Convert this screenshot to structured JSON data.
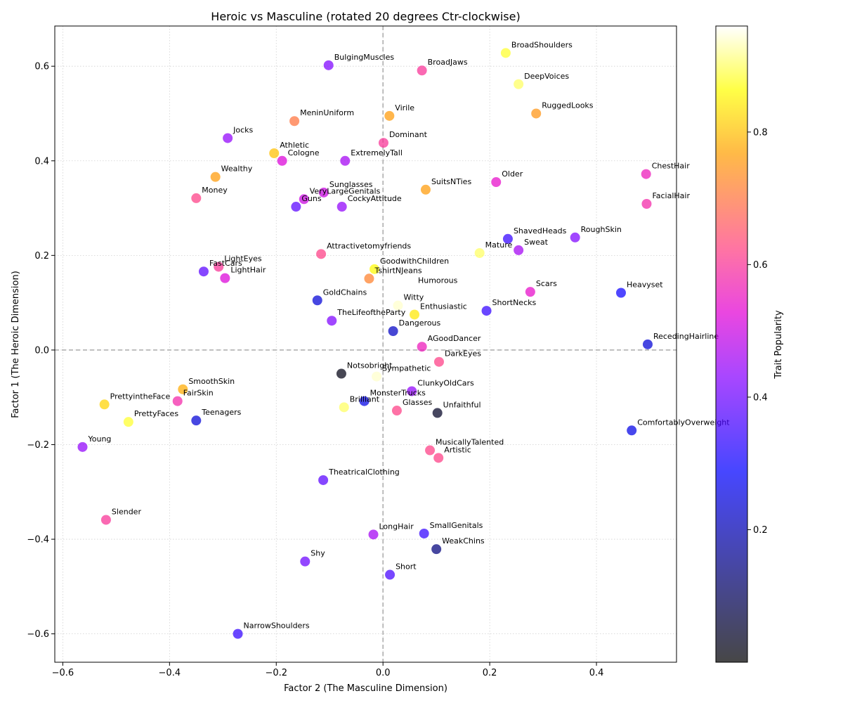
{
  "chart_data": {
    "type": "scatter",
    "title": "Heroic vs Masculine (rotated 20 degrees Ctr-clockwise)",
    "xlabel": "Factor 2 (The Masculine Dimension)",
    "ylabel": "Factor 1 (The Heroic Dimension)",
    "xlim": [
      -0.615,
      0.55
    ],
    "ylim": [
      -0.66,
      0.685
    ],
    "xticks": [
      -0.6,
      -0.4,
      -0.2,
      0.0,
      0.2,
      0.4
    ],
    "xtick_labels": [
      "−0.6",
      "−0.4",
      "−0.2",
      "0.0",
      "0.2",
      "0.4"
    ],
    "yticks": [
      -0.6,
      -0.4,
      -0.2,
      0.0,
      0.2,
      0.4,
      0.6
    ],
    "ytick_labels": [
      "−0.6",
      "−0.4",
      "−0.2",
      "0.0",
      "0.2",
      "0.4",
      "0.6"
    ],
    "grid": true,
    "reference_lines": {
      "x": 0,
      "y": 0,
      "style": "dashed"
    },
    "colorbar": {
      "label": "Trait Popularity",
      "range": [
        0.0,
        0.96
      ],
      "ticks": [
        0.2,
        0.4,
        0.6,
        0.8
      ],
      "tick_labels": [
        "0.2",
        "0.4",
        "0.6",
        "0.8"
      ]
    },
    "points": [
      {
        "label": "BroadShoulders",
        "x": 0.23,
        "y": 0.628,
        "c": 0.88
      },
      {
        "label": "BulgingMuscles",
        "x": -0.102,
        "y": 0.602,
        "c": 0.42
      },
      {
        "label": "BroadJaws",
        "x": 0.073,
        "y": 0.591,
        "c": 0.6
      },
      {
        "label": "DeepVoices",
        "x": 0.254,
        "y": 0.562,
        "c": 0.9
      },
      {
        "label": "RuggedLooks",
        "x": 0.287,
        "y": 0.5,
        "c": 0.75
      },
      {
        "label": "Virile",
        "x": 0.012,
        "y": 0.495,
        "c": 0.76
      },
      {
        "label": "MeninUniform",
        "x": -0.166,
        "y": 0.484,
        "c": 0.7
      },
      {
        "label": "Jocks",
        "x": -0.291,
        "y": 0.448,
        "c": 0.44
      },
      {
        "label": "Dominant",
        "x": 0.001,
        "y": 0.438,
        "c": 0.6
      },
      {
        "label": "Athletic",
        "x": -0.204,
        "y": 0.416,
        "c": 0.8
      },
      {
        "label": "Cologne",
        "x": -0.189,
        "y": 0.4,
        "c": 0.52
      },
      {
        "label": "ExtremelyTall",
        "x": -0.071,
        "y": 0.4,
        "c": 0.46
      },
      {
        "label": "ChestHair",
        "x": 0.493,
        "y": 0.372,
        "c": 0.56
      },
      {
        "label": "Wealthy",
        "x": -0.314,
        "y": 0.366,
        "c": 0.76
      },
      {
        "label": "Older",
        "x": 0.212,
        "y": 0.355,
        "c": 0.54
      },
      {
        "label": "SuitsNTies",
        "x": 0.08,
        "y": 0.339,
        "c": 0.76
      },
      {
        "label": "Sunglasses",
        "x": -0.111,
        "y": 0.333,
        "c": 0.5
      },
      {
        "label": "VeryLargeGenitals",
        "x": -0.148,
        "y": 0.319,
        "c": 0.5
      },
      {
        "label": "Money",
        "x": -0.35,
        "y": 0.321,
        "c": 0.62
      },
      {
        "label": "FacialHair",
        "x": 0.494,
        "y": 0.309,
        "c": 0.58
      },
      {
        "label": "Guns",
        "x": -0.163,
        "y": 0.303,
        "c": 0.38
      },
      {
        "label": "CockyAttitude",
        "x": -0.077,
        "y": 0.303,
        "c": 0.44
      },
      {
        "label": "RoughSkin",
        "x": 0.36,
        "y": 0.238,
        "c": 0.42
      },
      {
        "label": "ShavedHeads",
        "x": 0.234,
        "y": 0.235,
        "c": 0.34
      },
      {
        "label": "Sweat",
        "x": 0.254,
        "y": 0.211,
        "c": 0.46
      },
      {
        "label": "Mature",
        "x": 0.181,
        "y": 0.205,
        "c": 0.9
      },
      {
        "label": "Attractivetomyfriends",
        "x": -0.116,
        "y": 0.203,
        "c": 0.62
      },
      {
        "label": "GoodwithChildren",
        "x": -0.016,
        "y": 0.171,
        "c": 0.86
      },
      {
        "label": "LightEyes",
        "x": -0.308,
        "y": 0.176,
        "c": 0.6
      },
      {
        "label": "FastCars",
        "x": -0.336,
        "y": 0.166,
        "c": 0.38
      },
      {
        "label": "LightHair",
        "x": -0.296,
        "y": 0.152,
        "c": 0.52
      },
      {
        "label": "TshirtNJeans",
        "x": -0.026,
        "y": 0.151,
        "c": 0.72
      },
      {
        "label": "Humorous",
        "x": 0.055,
        "y": 0.13,
        "c": 0.96
      },
      {
        "label": "Scars",
        "x": 0.276,
        "y": 0.123,
        "c": 0.54
      },
      {
        "label": "Heavyset",
        "x": 0.446,
        "y": 0.121,
        "c": 0.3
      },
      {
        "label": "GoldChains",
        "x": -0.123,
        "y": 0.105,
        "c": 0.24
      },
      {
        "label": "Witty",
        "x": 0.028,
        "y": 0.094,
        "c": 0.94
      },
      {
        "label": "ShortNecks",
        "x": 0.194,
        "y": 0.083,
        "c": 0.34
      },
      {
        "label": "Enthusiastic",
        "x": 0.059,
        "y": 0.075,
        "c": 0.84
      },
      {
        "label": "TheLifeoftheParty",
        "x": -0.096,
        "y": 0.062,
        "c": 0.42
      },
      {
        "label": "Dangerous",
        "x": 0.019,
        "y": 0.04,
        "c": 0.22
      },
      {
        "label": "RecedingHairline",
        "x": 0.496,
        "y": 0.012,
        "c": 0.24
      },
      {
        "label": "AGoodDancer",
        "x": 0.073,
        "y": 0.007,
        "c": 0.56
      },
      {
        "label": "DarkEyes",
        "x": 0.105,
        "y": -0.025,
        "c": 0.62
      },
      {
        "label": "Notsobright",
        "x": -0.078,
        "y": -0.05,
        "c": 0.02
      },
      {
        "label": "Sympathetic",
        "x": -0.012,
        "y": -0.056,
        "c": 0.94
      },
      {
        "label": "ClunkyOldCars",
        "x": 0.054,
        "y": -0.087,
        "c": 0.44
      },
      {
        "label": "SmoothSkin",
        "x": -0.375,
        "y": -0.083,
        "c": 0.78
      },
      {
        "label": "FairSkin",
        "x": -0.385,
        "y": -0.108,
        "c": 0.58
      },
      {
        "label": "MonsterTrucks",
        "x": -0.035,
        "y": -0.108,
        "c": 0.26
      },
      {
        "label": "PrettyintheFace",
        "x": -0.522,
        "y": -0.115,
        "c": 0.82
      },
      {
        "label": "Brilliant",
        "x": -0.073,
        "y": -0.121,
        "c": 0.9
      },
      {
        "label": "Glasses",
        "x": 0.026,
        "y": -0.128,
        "c": 0.62
      },
      {
        "label": "Unfaithful",
        "x": 0.102,
        "y": -0.133,
        "c": 0.04
      },
      {
        "label": "PrettyFaces",
        "x": -0.477,
        "y": -0.152,
        "c": 0.88
      },
      {
        "label": "Teenagers",
        "x": -0.35,
        "y": -0.149,
        "c": 0.24
      },
      {
        "label": "ComfortablyOverweight",
        "x": 0.466,
        "y": -0.17,
        "c": 0.26
      },
      {
        "label": "Young",
        "x": -0.563,
        "y": -0.205,
        "c": 0.44
      },
      {
        "label": "MusicallyTalented",
        "x": 0.088,
        "y": -0.212,
        "c": 0.62
      },
      {
        "label": "Artistic",
        "x": 0.104,
        "y": -0.228,
        "c": 0.62
      },
      {
        "label": "TheatricalClothing",
        "x": -0.112,
        "y": -0.275,
        "c": 0.38
      },
      {
        "label": "Slender",
        "x": -0.519,
        "y": -0.359,
        "c": 0.6
      },
      {
        "label": "LongHair",
        "x": -0.018,
        "y": -0.39,
        "c": 0.46
      },
      {
        "label": "SmallGenitals",
        "x": 0.077,
        "y": -0.388,
        "c": 0.34
      },
      {
        "label": "WeakChins",
        "x": 0.1,
        "y": -0.421,
        "c": 0.14
      },
      {
        "label": "Shy",
        "x": -0.146,
        "y": -0.447,
        "c": 0.4
      },
      {
        "label": "Short",
        "x": 0.013,
        "y": -0.475,
        "c": 0.36
      },
      {
        "label": "NarrowShoulders",
        "x": -0.272,
        "y": -0.6,
        "c": 0.34
      }
    ]
  }
}
